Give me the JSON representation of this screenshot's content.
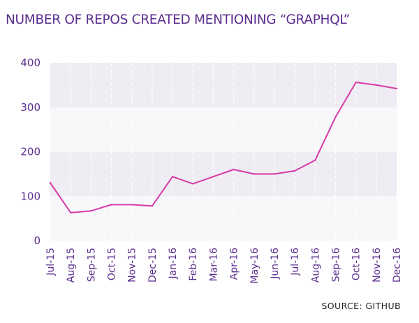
{
  "title": "NUMBER OF REPOS CREATED MENTIONING “GRAPHQL”",
  "source": "SOURCE: GITHUB",
  "colors": {
    "title": "#5b2d8e",
    "axis_text": "#5b2d8e",
    "line": "#d63ba8",
    "band_dark": "#efedf3",
    "band_light": "#f8f7fa",
    "gridline": "#ffffff"
  },
  "chart_data": {
    "type": "line",
    "title": "NUMBER OF REPOS CREATED MENTIONING “GRAPHQL”",
    "xlabel": "",
    "ylabel": "",
    "categories": [
      "Jul-15",
      "Aug-15",
      "Sep-15",
      "Oct-15",
      "Nov-15",
      "Dec-15",
      "Jan-16",
      "Feb-16",
      "Mar-16",
      "Apr-16",
      "May-16",
      "Jun-16",
      "Jul-16",
      "Aug-16",
      "Sep-16",
      "Oct-16",
      "Nov-16",
      "Dec-16"
    ],
    "values": [
      130,
      63,
      67,
      81,
      81,
      78,
      144,
      128,
      144,
      160,
      150,
      150,
      157,
      181,
      278,
      356,
      350,
      342
    ],
    "yticks": [
      0,
      100,
      200,
      300,
      400
    ],
    "ylim": [
      0,
      400
    ],
    "grid": "vertical dashed lines with alternating horizontal bands",
    "legend": "none"
  }
}
